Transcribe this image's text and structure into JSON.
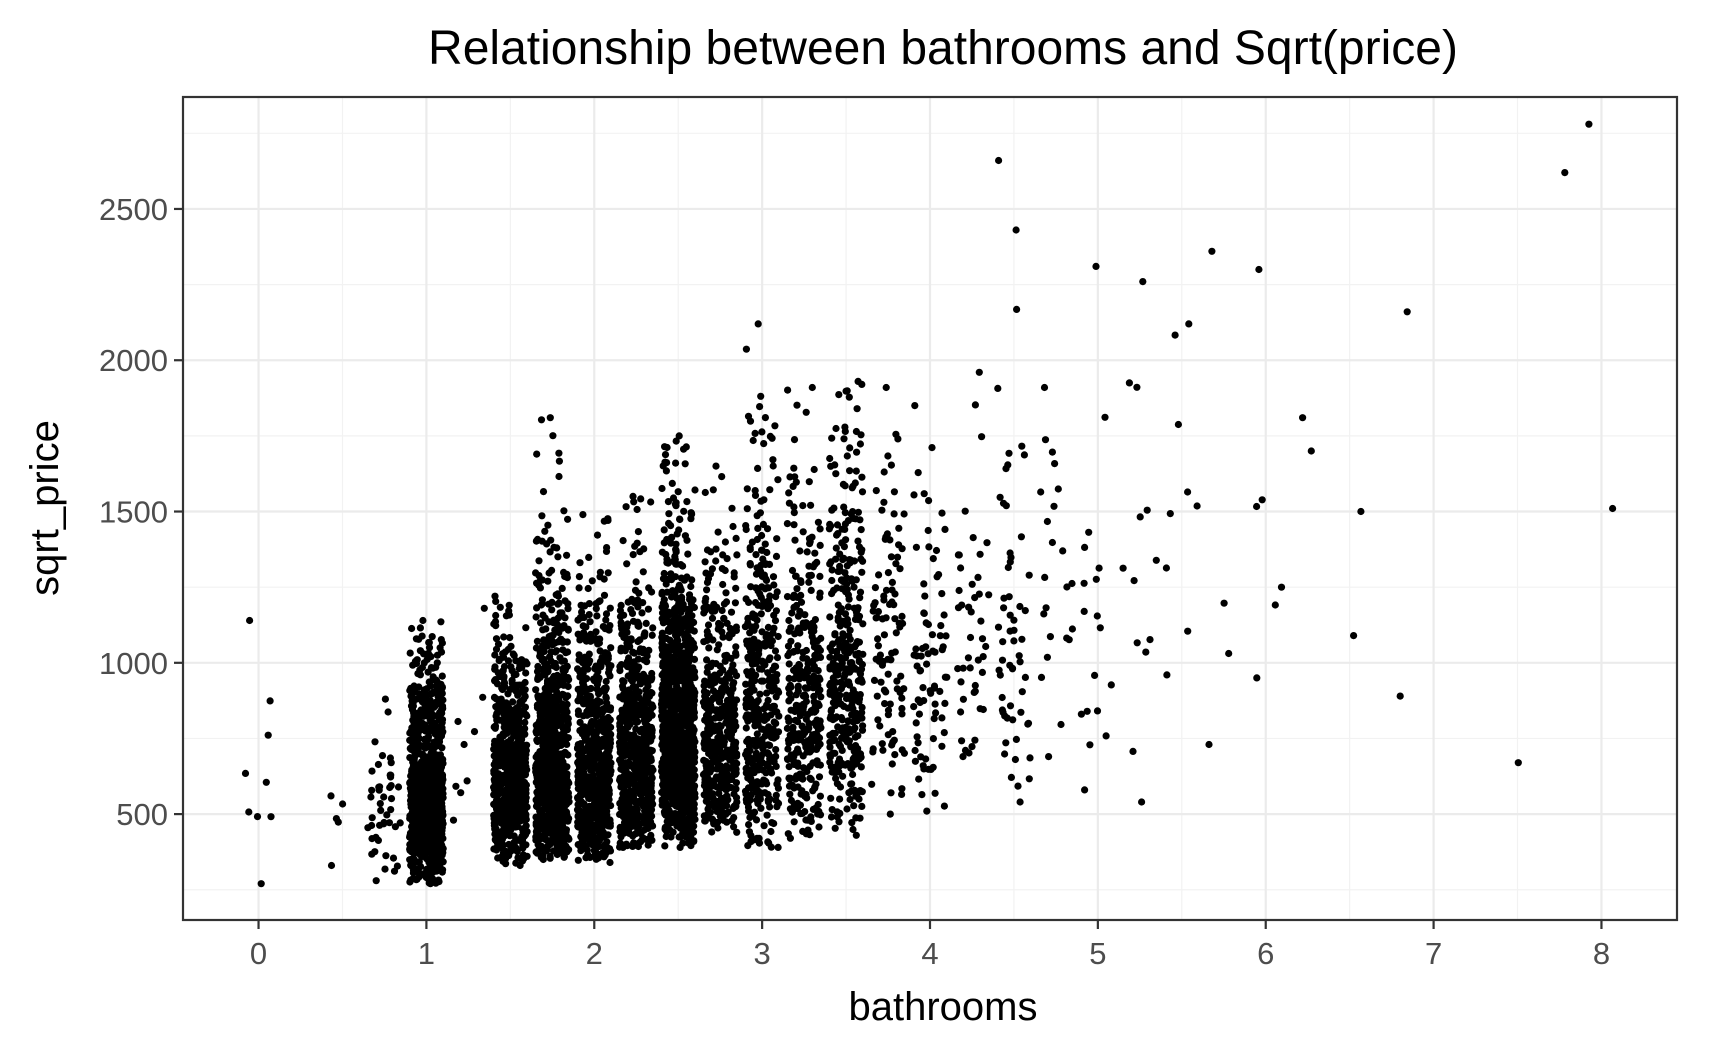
{
  "chart_data": {
    "type": "scatter",
    "title": "Relationship between bathrooms and Sqrt(price)",
    "xlabel": "bathrooms",
    "ylabel": "sqrt_price",
    "xlim": [
      -0.45,
      8.45
    ],
    "ylim": [
      150,
      2870
    ],
    "x_ticks": [
      0,
      1,
      2,
      3,
      4,
      5,
      6,
      7,
      8
    ],
    "y_ticks": [
      500,
      1000,
      1500,
      2000,
      2500
    ],
    "x_tick_labels": [
      "0",
      "1",
      "2",
      "3",
      "4",
      "5",
      "6",
      "7",
      "8"
    ],
    "y_tick_labels": [
      "500",
      "1000",
      "1500",
      "2000",
      "2500"
    ],
    "grid": true,
    "legend": "none",
    "point_color": "#000000",
    "jitter_width": 0.1,
    "clusters": [
      {
        "bathrooms": 0,
        "count": 9,
        "min": 270,
        "max": 1140,
        "median": 560
      },
      {
        "bathrooms": 0.5,
        "count": 5,
        "min": 330,
        "max": 560,
        "median": 500
      },
      {
        "bathrooms": 0.75,
        "count": 45,
        "min": 280,
        "max": 880,
        "median": 500
      },
      {
        "bathrooms": 1,
        "count": 900,
        "min": 270,
        "max": 1140,
        "median": 560
      },
      {
        "bathrooms": 1.25,
        "count": 9,
        "min": 480,
        "max": 1180,
        "median": 690
      },
      {
        "bathrooms": 1.5,
        "count": 650,
        "min": 330,
        "max": 1220,
        "median": 620
      },
      {
        "bathrooms": 1.75,
        "count": 800,
        "min": 350,
        "max": 1810,
        "median": 650
      },
      {
        "bathrooms": 2,
        "count": 700,
        "min": 340,
        "max": 1490,
        "median": 650
      },
      {
        "bathrooms": 2.25,
        "count": 600,
        "min": 390,
        "max": 1550,
        "median": 720
      },
      {
        "bathrooms": 2.5,
        "count": 1100,
        "min": 390,
        "max": 1750,
        "median": 780
      },
      {
        "bathrooms": 2.75,
        "count": 450,
        "min": 440,
        "max": 1650,
        "median": 780
      },
      {
        "bathrooms": 3,
        "count": 400,
        "min": 390,
        "max": 2120,
        "median": 820
      },
      {
        "bathrooms": 3.25,
        "count": 350,
        "min": 420,
        "max": 1910,
        "median": 900
      },
      {
        "bathrooms": 3.5,
        "count": 380,
        "min": 430,
        "max": 1930,
        "median": 950
      },
      {
        "bathrooms": 3.75,
        "count": 100,
        "min": 500,
        "max": 1910,
        "median": 980
      },
      {
        "bathrooms": 4,
        "count": 80,
        "min": 510,
        "max": 1850,
        "median": 1000
      },
      {
        "bathrooms": 4.25,
        "count": 45,
        "min": 690,
        "max": 1960,
        "median": 1100
      },
      {
        "bathrooms": 4.5,
        "count": 60,
        "min": 540,
        "max": 2660,
        "median": 1050
      },
      {
        "bathrooms": 4.75,
        "count": 23,
        "min": 690,
        "max": 1910,
        "median": 1250
      },
      {
        "bathrooms": 5,
        "count": 18,
        "min": 580,
        "max": 2310,
        "median": 1100
      },
      {
        "bathrooms": 5.25,
        "count": 13,
        "min": 540,
        "max": 2260,
        "median": 1250
      },
      {
        "bathrooms": 5.5,
        "count": 9,
        "min": 960,
        "max": 2120,
        "median": 1590
      },
      {
        "bathrooms": 5.75,
        "count": 4,
        "min": 730,
        "max": 2360,
        "median": 1390
      },
      {
        "bathrooms": 6,
        "count": 6,
        "min": 950,
        "max": 2300,
        "median": 1470
      },
      {
        "bathrooms": 6.25,
        "count": 2,
        "min": 1700,
        "max": 1810,
        "median": 1750
      },
      {
        "bathrooms": 6.5,
        "count": 2,
        "min": 1090,
        "max": 1500,
        "median": 1300
      },
      {
        "bathrooms": 6.75,
        "count": 2,
        "min": 890,
        "max": 2160,
        "median": 1500
      },
      {
        "bathrooms": 7.5,
        "count": 1,
        "min": 670,
        "max": 670,
        "median": 670
      },
      {
        "bathrooms": 7.75,
        "count": 1,
        "min": 2620,
        "max": 2620,
        "median": 2620
      },
      {
        "bathrooms": 8,
        "count": 2,
        "min": 1510,
        "max": 2780,
        "median": 2100
      }
    ]
  }
}
